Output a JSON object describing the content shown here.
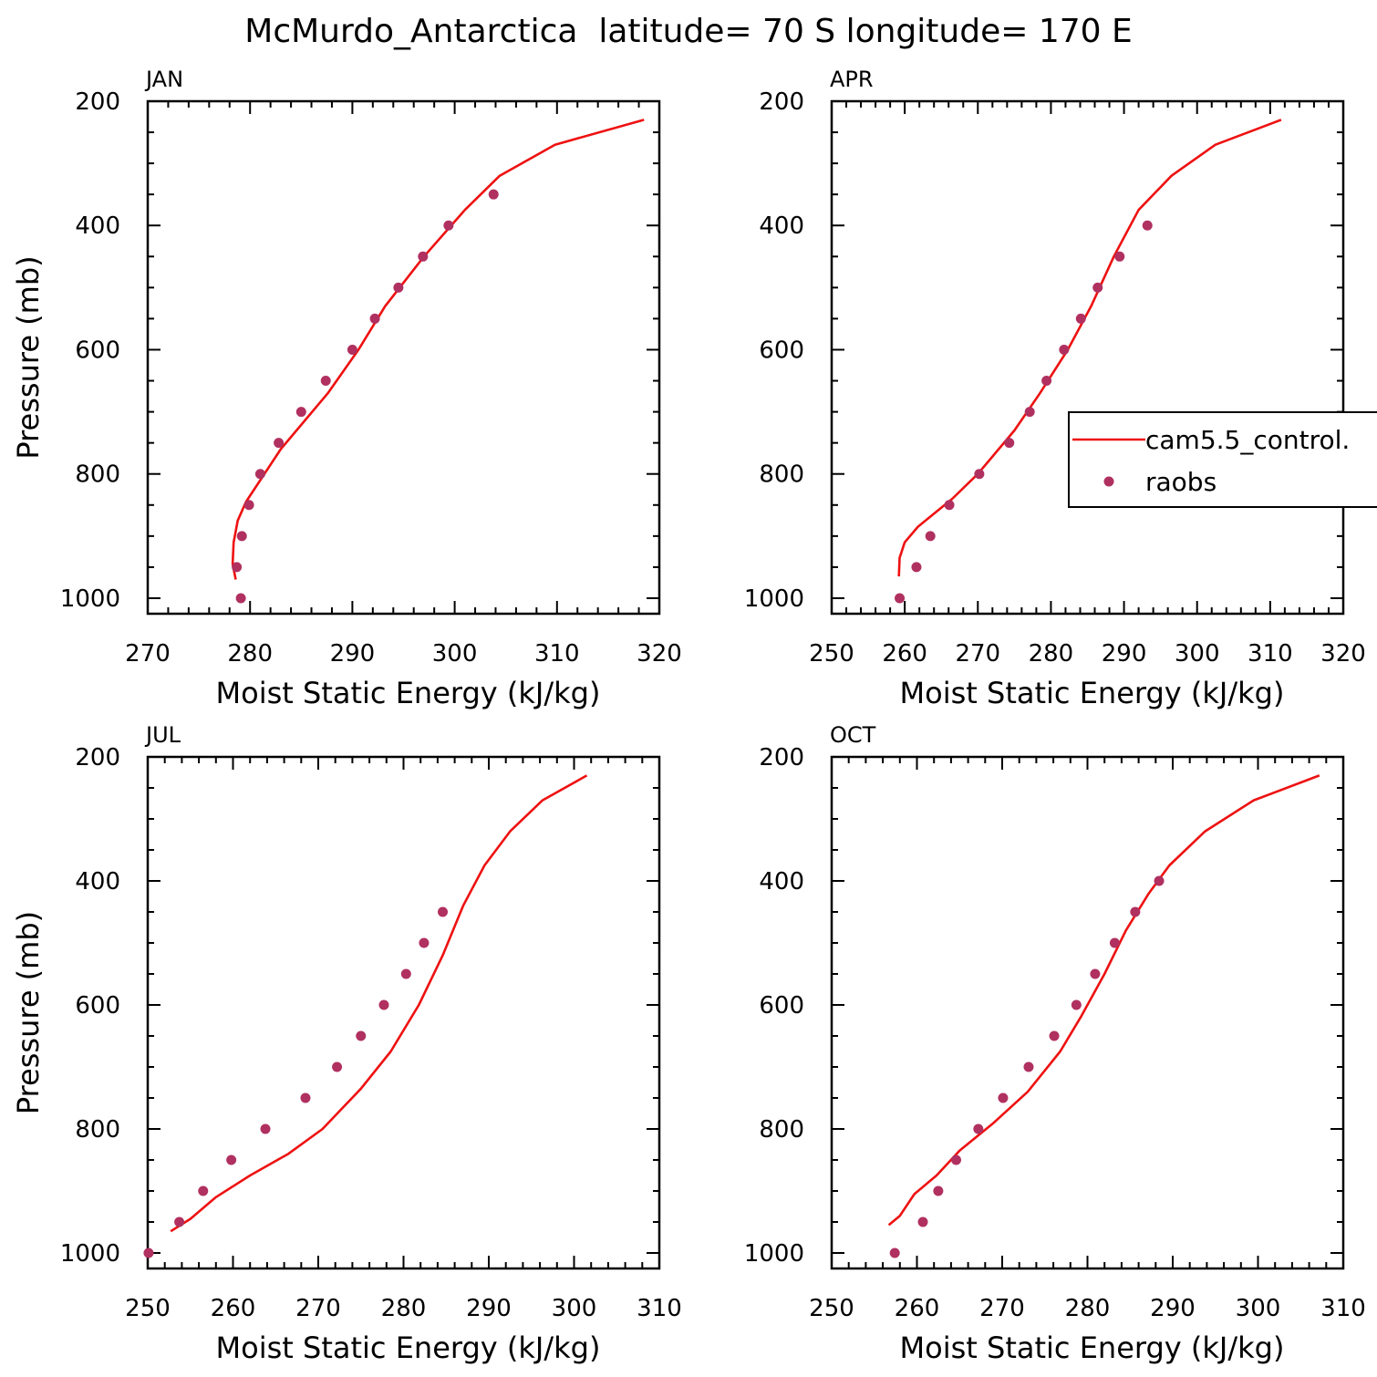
{
  "figure": {
    "title": "McMurdo_Antarctica  latitude= 70 S longitude= 170 E"
  },
  "colors": {
    "model": "#ee1111",
    "obs": "#b03060",
    "axis": "#000000"
  },
  "legend": {
    "placement": "right-middle",
    "entries": [
      "cam5.5_control.",
      "raobs"
    ]
  },
  "chart_data": [
    {
      "type": "line",
      "panel_label": "JAN",
      "xlabel": "Moist Static Energy (kJ/kg)",
      "ylabel": "Pressure (mb)",
      "xlim": [
        270,
        320
      ],
      "ylim": [
        1025,
        200
      ],
      "y_inverted": true,
      "xticks": [
        270,
        280,
        290,
        300,
        310,
        320
      ],
      "yticks": [
        200,
        400,
        600,
        800,
        1000
      ],
      "series": [
        {
          "name": "cam5.5_control.",
          "style": "line",
          "points": [
            [
              318.5,
              230
            ],
            [
              309.8,
              270
            ],
            [
              304.4,
              320
            ],
            [
              301.0,
              375
            ],
            [
              297.0,
              450
            ],
            [
              293.2,
              530
            ],
            [
              290.6,
              600
            ],
            [
              287.6,
              670
            ],
            [
              283.0,
              760
            ],
            [
              279.6,
              845
            ],
            [
              278.8,
              875
            ],
            [
              278.4,
              910
            ],
            [
              278.3,
              945
            ],
            [
              278.6,
              970
            ]
          ]
        },
        {
          "name": "raobs",
          "style": "scatter",
          "points": [
            [
              303.8,
              350
            ],
            [
              299.4,
              400
            ],
            [
              296.9,
              450
            ],
            [
              294.5,
              500
            ],
            [
              292.2,
              550
            ],
            [
              290.0,
              600
            ],
            [
              287.4,
              650
            ],
            [
              285.0,
              700
            ],
            [
              282.8,
              750
            ],
            [
              281.0,
              800
            ],
            [
              279.9,
              850
            ],
            [
              279.2,
              900
            ],
            [
              278.7,
              950
            ],
            [
              279.1,
              1000
            ]
          ]
        }
      ]
    },
    {
      "type": "line",
      "panel_label": "APR",
      "xlabel": "Moist Static Energy (kJ/kg)",
      "ylabel": "",
      "xlim": [
        250,
        320
      ],
      "ylim": [
        1025,
        200
      ],
      "y_inverted": true,
      "xticks": [
        250,
        260,
        270,
        280,
        290,
        300,
        310,
        320
      ],
      "yticks": [
        200,
        400,
        600,
        800,
        1000
      ],
      "series": [
        {
          "name": "cam5.5_control.",
          "style": "line",
          "points": [
            [
              311.5,
              230
            ],
            [
              302.5,
              270
            ],
            [
              296.5,
              320
            ],
            [
              292.0,
              375
            ],
            [
              288.6,
              450
            ],
            [
              285.5,
              530
            ],
            [
              282.3,
              600
            ],
            [
              278.5,
              670
            ],
            [
              275.0,
              730
            ],
            [
              270.0,
              800
            ],
            [
              266.5,
              840
            ],
            [
              261.8,
              885
            ],
            [
              260.0,
              910
            ],
            [
              259.3,
              935
            ],
            [
              259.2,
              965
            ]
          ]
        },
        {
          "name": "raobs",
          "style": "scatter",
          "points": [
            [
              293.2,
              400
            ],
            [
              289.4,
              450
            ],
            [
              286.4,
              500
            ],
            [
              284.1,
              550
            ],
            [
              281.8,
              600
            ],
            [
              279.4,
              650
            ],
            [
              277.1,
              700
            ],
            [
              274.3,
              750
            ],
            [
              270.2,
              800
            ],
            [
              266.1,
              850
            ],
            [
              263.5,
              900
            ],
            [
              261.6,
              950
            ],
            [
              259.3,
              1000
            ]
          ]
        }
      ]
    },
    {
      "type": "line",
      "panel_label": "JUL",
      "xlabel": "Moist Static Energy (kJ/kg)",
      "ylabel": "Pressure (mb)",
      "xlim": [
        250,
        310
      ],
      "ylim": [
        1025,
        200
      ],
      "y_inverted": true,
      "xticks": [
        250,
        260,
        270,
        280,
        290,
        300,
        310
      ],
      "yticks": [
        200,
        400,
        600,
        800,
        1000
      ],
      "series": [
        {
          "name": "cam5.5_control.",
          "style": "line",
          "points": [
            [
              301.5,
              230
            ],
            [
              296.3,
              270
            ],
            [
              292.5,
              320
            ],
            [
              289.5,
              375
            ],
            [
              287.0,
              440
            ],
            [
              284.6,
              520
            ],
            [
              281.8,
              600
            ],
            [
              278.5,
              675
            ],
            [
              275.0,
              735
            ],
            [
              270.5,
              800
            ],
            [
              266.5,
              840
            ],
            [
              262.0,
              875
            ],
            [
              258.0,
              910
            ],
            [
              255.0,
              945
            ],
            [
              252.7,
              965
            ]
          ]
        },
        {
          "name": "raobs",
          "style": "scatter",
          "points": [
            [
              284.6,
              450
            ],
            [
              282.4,
              500
            ],
            [
              280.3,
              550
            ],
            [
              277.7,
              600
            ],
            [
              275.0,
              650
            ],
            [
              272.2,
              700
            ],
            [
              268.5,
              750
            ],
            [
              263.8,
              800
            ],
            [
              259.8,
              850
            ],
            [
              256.5,
              900
            ],
            [
              253.7,
              950
            ],
            [
              250.1,
              1000
            ]
          ]
        }
      ]
    },
    {
      "type": "line",
      "panel_label": "OCT",
      "xlabel": "Moist Static Energy (kJ/kg)",
      "ylabel": "",
      "xlim": [
        250,
        310
      ],
      "ylim": [
        1025,
        200
      ],
      "y_inverted": true,
      "xticks": [
        250,
        260,
        270,
        280,
        290,
        300,
        310
      ],
      "yticks": [
        200,
        400,
        600,
        800,
        1000
      ],
      "series": [
        {
          "name": "cam5.5_control.",
          "style": "line",
          "points": [
            [
              307.2,
              230
            ],
            [
              299.5,
              270
            ],
            [
              293.8,
              320
            ],
            [
              289.6,
              375
            ],
            [
              287.2,
              420
            ],
            [
              284.5,
              480
            ],
            [
              282.0,
              550
            ],
            [
              279.2,
              620
            ],
            [
              276.8,
              675
            ],
            [
              273.0,
              740
            ],
            [
              269.0,
              790
            ],
            [
              265.0,
              835
            ],
            [
              262.3,
              875
            ],
            [
              259.7,
              905
            ],
            [
              258.0,
              940
            ],
            [
              256.7,
              955
            ]
          ]
        },
        {
          "name": "raobs",
          "style": "scatter",
          "points": [
            [
              288.4,
              400
            ],
            [
              285.6,
              450
            ],
            [
              283.2,
              500
            ],
            [
              280.9,
              550
            ],
            [
              278.7,
              600
            ],
            [
              276.1,
              650
            ],
            [
              273.1,
              700
            ],
            [
              270.1,
              750
            ],
            [
              267.2,
              800
            ],
            [
              264.6,
              850
            ],
            [
              262.5,
              900
            ],
            [
              260.7,
              950
            ],
            [
              257.4,
              1000
            ]
          ]
        }
      ]
    }
  ]
}
